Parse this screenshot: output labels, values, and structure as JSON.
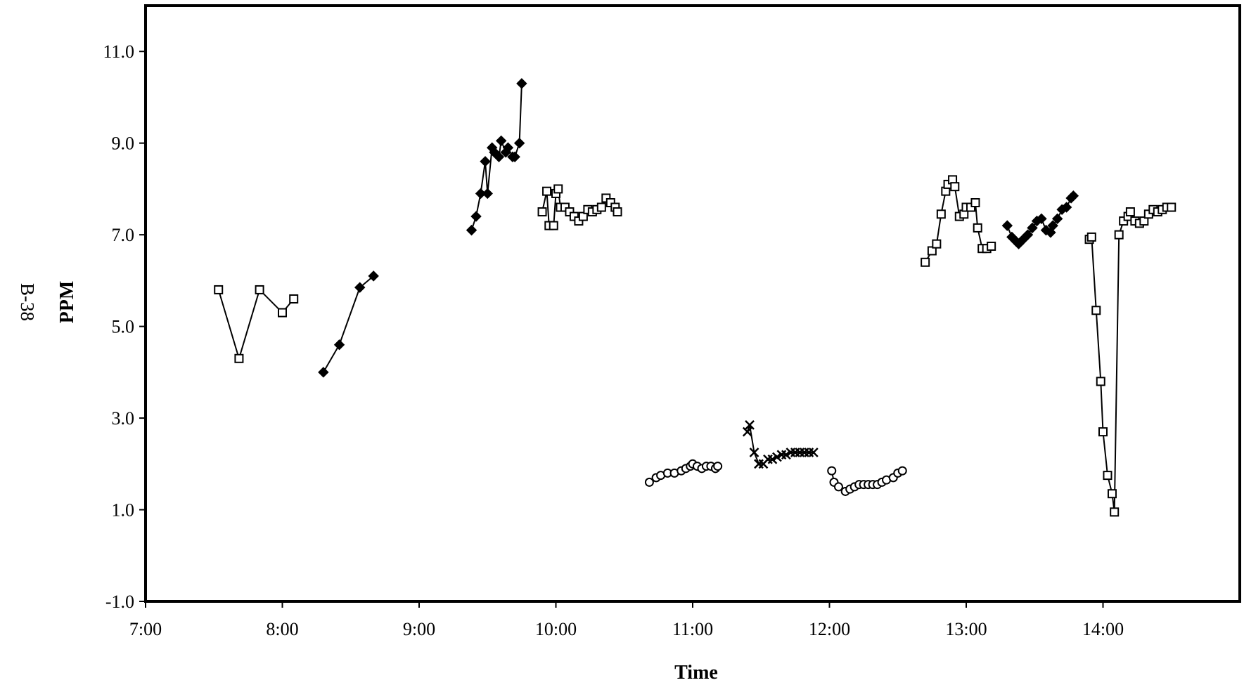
{
  "chart_data": {
    "type": "line",
    "side_label": "B-38",
    "xlabel": "Time",
    "ylabel": "PPM",
    "xlim": [
      "7:00",
      "15:00"
    ],
    "ylim": [
      -1.0,
      12.0
    ],
    "x_ticks": [
      "7:00",
      "8:00",
      "9:00",
      "10:00",
      "11:00",
      "12:00",
      "13:00",
      "14:00"
    ],
    "y_ticks": [
      "-1.0",
      "1.0",
      "3.0",
      "5.0",
      "7.0",
      "9.0",
      "11.0"
    ],
    "grid": false,
    "legend": "none",
    "series": [
      {
        "marker": "square",
        "x": [
          "7:32",
          "7:41",
          "7:50",
          "8:00",
          "8:05"
        ],
        "values": [
          5.8,
          4.3,
          5.8,
          5.3,
          5.6
        ]
      },
      {
        "marker": "diamond",
        "x": [
          "8:18",
          "8:25",
          "8:34",
          "8:40"
        ],
        "values": [
          4.0,
          4.6,
          5.85,
          6.1
        ]
      },
      {
        "marker": "diamond",
        "x": [
          "9:23",
          "9:25",
          "9:27",
          "9:29",
          "9:30",
          "9:32",
          "9:33",
          "9:35",
          "9:36",
          "9:38",
          "9:39",
          "9:41",
          "9:42",
          "9:44",
          "9:45"
        ],
        "values": [
          7.1,
          7.4,
          7.9,
          8.6,
          7.9,
          8.9,
          8.8,
          8.7,
          9.05,
          8.8,
          8.9,
          8.7,
          8.7,
          9.0,
          10.3
        ]
      },
      {
        "marker": "square",
        "x": [
          "9:54",
          "9:56",
          "9:57",
          "9:59",
          "10:00",
          "10:01",
          "10:02",
          "10:04",
          "10:06",
          "10:08",
          "10:10",
          "10:12",
          "10:14",
          "10:16",
          "10:18",
          "10:20",
          "10:22",
          "10:24",
          "10:26",
          "10:27"
        ],
        "values": [
          7.5,
          7.95,
          7.2,
          7.2,
          7.9,
          8.0,
          7.6,
          7.6,
          7.5,
          7.4,
          7.3,
          7.4,
          7.55,
          7.5,
          7.55,
          7.6,
          7.8,
          7.7,
          7.6,
          7.5
        ]
      },
      {
        "marker": "circle",
        "x": [
          "10:41",
          "10:44",
          "10:46",
          "10:49",
          "10:52",
          "10:55",
          "10:57",
          "10:59",
          "11:00",
          "11:02",
          "11:04",
          "11:06",
          "11:08",
          "11:10",
          "11:11"
        ],
        "values": [
          1.6,
          1.7,
          1.75,
          1.8,
          1.8,
          1.85,
          1.9,
          1.95,
          2.0,
          1.95,
          1.9,
          1.95,
          1.95,
          1.9,
          1.95
        ]
      },
      {
        "marker": "x",
        "x": [
          "11:24",
          "11:25",
          "11:27",
          "11:29",
          "11:31",
          "11:33",
          "11:35",
          "11:37",
          "11:39",
          "11:41",
          "11:43",
          "11:45",
          "11:47",
          "11:49",
          "11:51",
          "11:53"
        ],
        "values": [
          2.7,
          2.85,
          2.25,
          2.0,
          2.0,
          2.1,
          2.1,
          2.15,
          2.2,
          2.2,
          2.25,
          2.25,
          2.25,
          2.25,
          2.25,
          2.25
        ]
      },
      {
        "marker": "circle",
        "x": [
          "12:01",
          "12:02",
          "12:04",
          "12:07",
          "12:09",
          "12:11",
          "12:13",
          "12:15",
          "12:17",
          "12:19",
          "12:21",
          "12:23",
          "12:25",
          "12:28",
          "12:30",
          "12:32"
        ],
        "values": [
          1.85,
          1.6,
          1.5,
          1.4,
          1.45,
          1.5,
          1.55,
          1.55,
          1.55,
          1.55,
          1.55,
          1.6,
          1.65,
          1.7,
          1.8,
          1.85
        ]
      },
      {
        "marker": "square",
        "x": [
          "12:42",
          "12:45",
          "12:47",
          "12:49",
          "12:51",
          "12:52",
          "12:54",
          "12:55",
          "12:57",
          "12:59",
          "13:00",
          "13:02",
          "13:04",
          "13:05",
          "13:07",
          "13:09",
          "13:11"
        ],
        "values": [
          6.4,
          6.65,
          6.8,
          7.45,
          7.95,
          8.1,
          8.2,
          8.05,
          7.4,
          7.45,
          7.6,
          7.6,
          7.7,
          7.15,
          6.7,
          6.7,
          6.75
        ]
      },
      {
        "marker": "diamond",
        "x": [
          "13:18",
          "13:20",
          "13:22",
          "13:23",
          "13:25",
          "13:27",
          "13:29",
          "13:31",
          "13:33",
          "13:35",
          "13:37",
          "13:38",
          "13:40",
          "13:42",
          "13:44",
          "13:46",
          "13:47"
        ],
        "values": [
          7.2,
          6.95,
          6.85,
          6.8,
          6.9,
          7.0,
          7.15,
          7.3,
          7.35,
          7.1,
          7.05,
          7.2,
          7.35,
          7.55,
          7.6,
          7.8,
          7.85
        ]
      },
      {
        "marker": "square",
        "x": [
          "13:54",
          "13:55",
          "13:57",
          "13:59",
          "14:00",
          "14:02",
          "14:04",
          "14:05",
          "14:07",
          "14:09",
          "14:11",
          "14:12",
          "14:14",
          "14:16",
          "14:18",
          "14:20",
          "14:22",
          "14:24",
          "14:26",
          "14:28",
          "14:30"
        ],
        "values": [
          6.9,
          6.95,
          5.35,
          3.8,
          2.7,
          1.75,
          1.35,
          0.95,
          7.0,
          7.3,
          7.4,
          7.5,
          7.3,
          7.25,
          7.3,
          7.45,
          7.55,
          7.5,
          7.55,
          7.6,
          7.6
        ]
      }
    ]
  }
}
